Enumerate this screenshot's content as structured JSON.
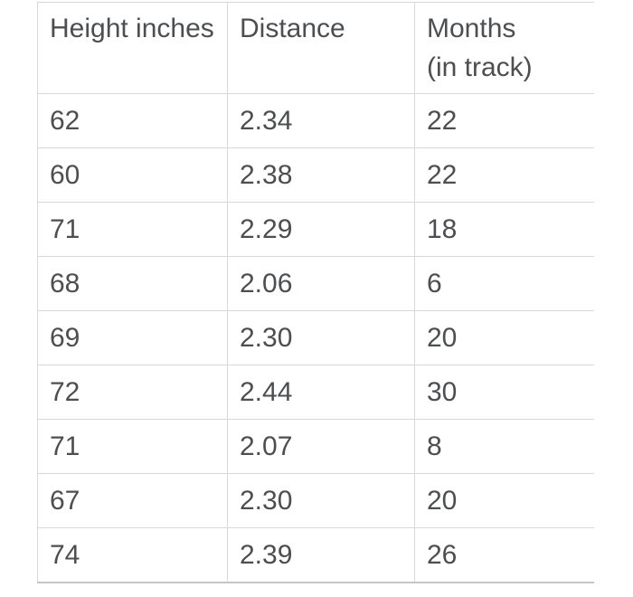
{
  "chart_data": {
    "type": "table",
    "columns": [
      "Height inches",
      "Distance",
      "Months\n(in track)"
    ],
    "rows": [
      [
        "62",
        "2.34",
        "22"
      ],
      [
        "60",
        "2.38",
        "22"
      ],
      [
        "71",
        "2.29",
        "18"
      ],
      [
        "68",
        "2.06",
        "6"
      ],
      [
        "69",
        "2.30",
        "20"
      ],
      [
        "72",
        "2.44",
        "30"
      ],
      [
        "71",
        "2.07",
        "8"
      ],
      [
        "67",
        "2.30",
        "20"
      ],
      [
        "74",
        "2.39",
        "26"
      ]
    ]
  },
  "colors": {
    "text": "#4d4e50",
    "grid_border": "#d8d8d8",
    "bottom_border": "#c6c6c6",
    "background": "#ffffff"
  }
}
